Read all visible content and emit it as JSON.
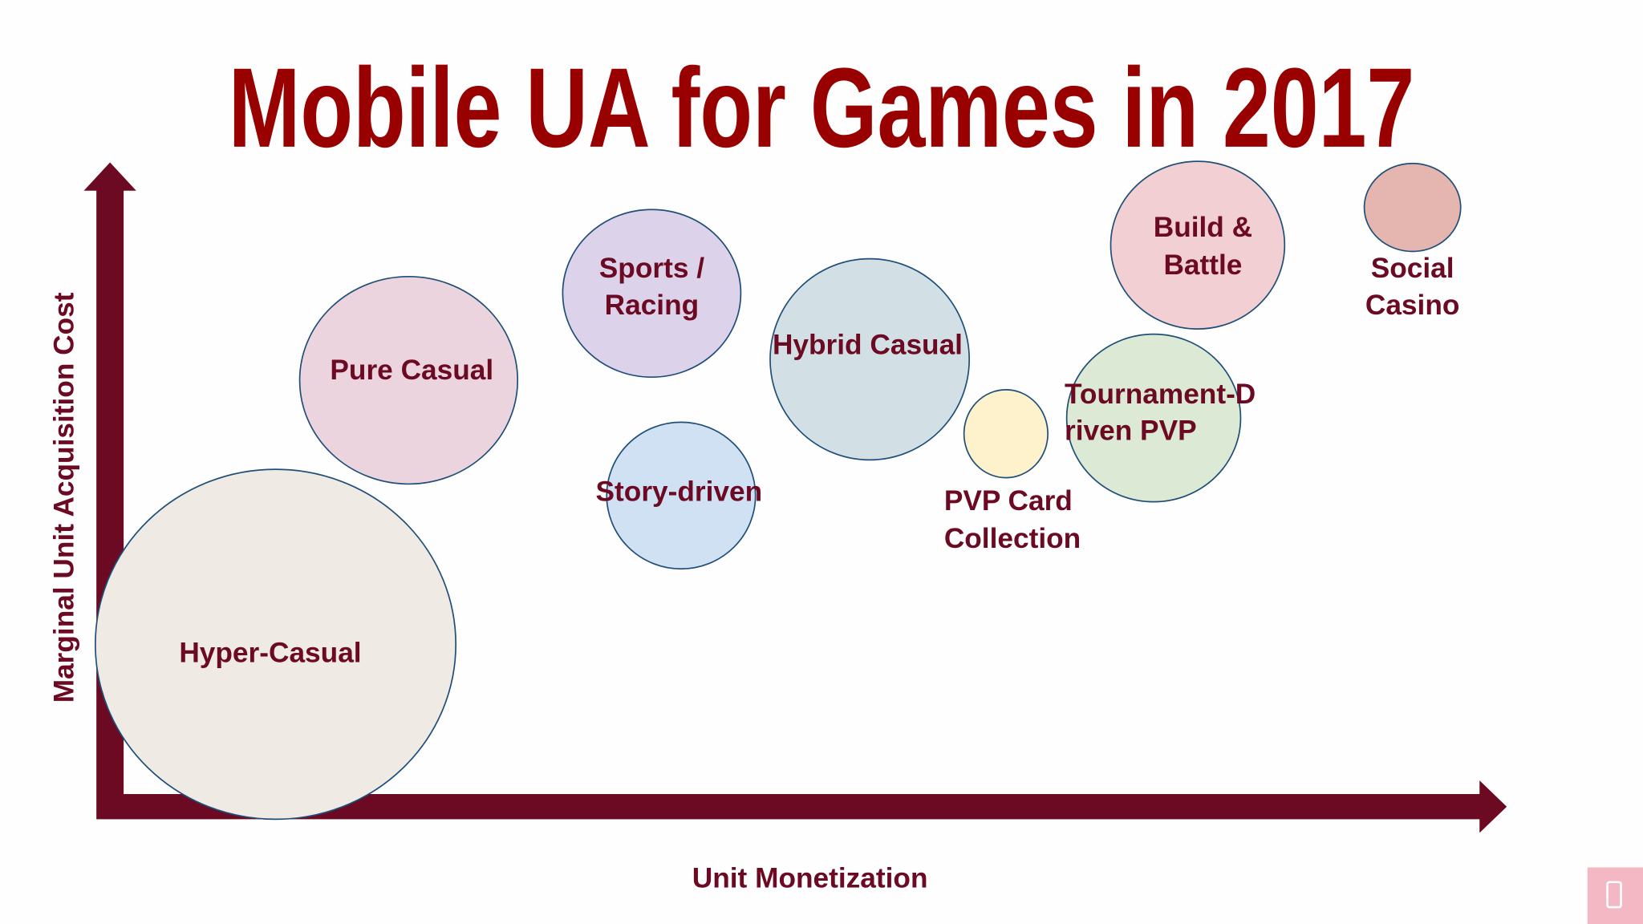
{
  "title": "Mobile UA for Games in 2017",
  "y_axis_label": "Marginal Unit Acquisition Cost",
  "x_axis_label": "Unit Monetization",
  "bubbles": [
    {
      "lines": [
        "Hyper-Casual"
      ]
    },
    {
      "lines": [
        "Pure Casual"
      ]
    },
    {
      "lines": [
        "Sports /",
        "Racing"
      ]
    },
    {
      "lines": [
        "Story-driven"
      ]
    },
    {
      "lines": [
        "Hybrid Casual"
      ]
    },
    {
      "lines": [
        "PVP Card",
        "Collection"
      ]
    },
    {
      "lines": [
        "Tournament-D",
        "riven PVP"
      ]
    },
    {
      "lines": [
        "Build &",
        "Battle"
      ]
    },
    {
      "lines": [
        "Social",
        "Casino"
      ]
    }
  ]
}
